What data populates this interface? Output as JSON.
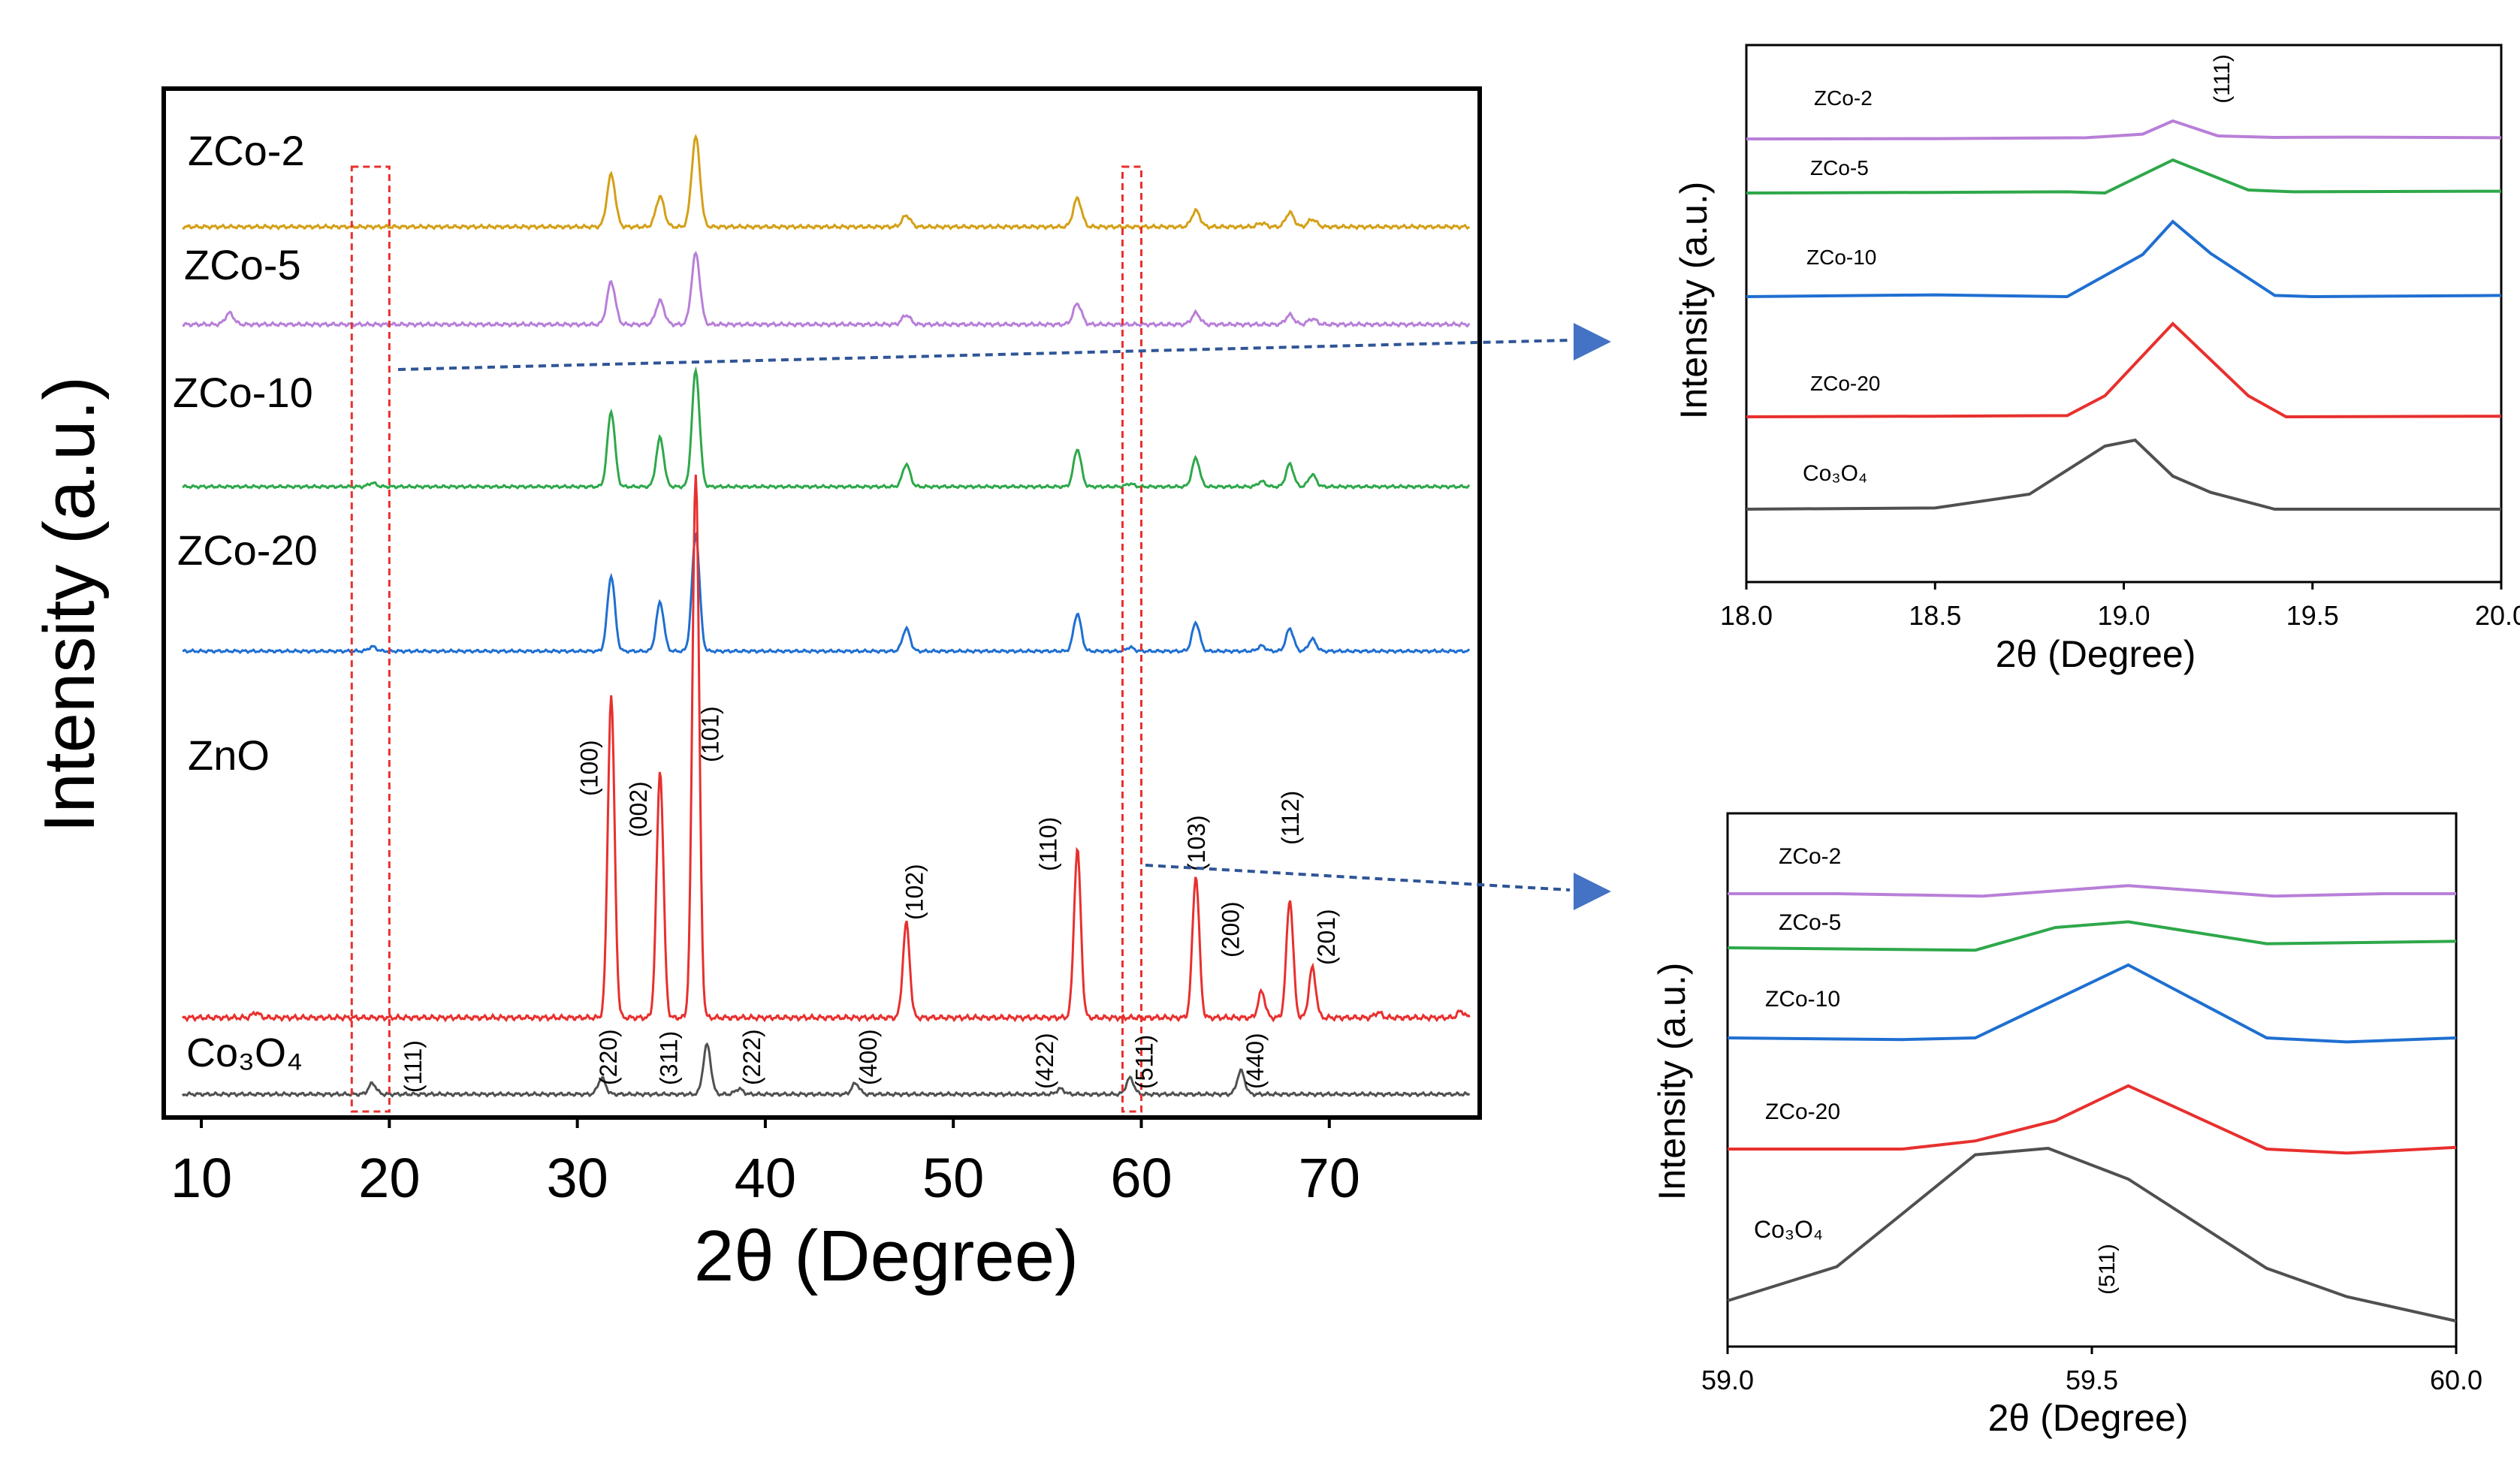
{
  "chart_data": [
    {
      "id": "main",
      "type": "line",
      "xlabel": "2θ (Degree)",
      "ylabel": "Intensity (a.u.)",
      "xlim": [
        8,
        78
      ],
      "xticks": [
        10,
        20,
        30,
        40,
        50,
        60,
        70
      ],
      "series": [
        {
          "name": "ZCo-2",
          "color": "#D4A017",
          "peaks": [
            [
              31.8,
              0.55
            ],
            [
              34.4,
              0.32
            ],
            [
              36.3,
              0.95
            ],
            [
              47.5,
              0.12
            ],
            [
              56.6,
              0.3
            ],
            [
              62.9,
              0.17
            ],
            [
              66.4,
              0.04
            ],
            [
              67.9,
              0.15
            ],
            [
              69.1,
              0.08
            ]
          ]
        },
        {
          "name": "ZCo-5",
          "color": "#B87FD8",
          "peaks": [
            [
              11.5,
              0.12
            ],
            [
              31.8,
              0.45
            ],
            [
              34.4,
              0.25
            ],
            [
              36.3,
              0.75
            ],
            [
              47.5,
              0.1
            ],
            [
              56.6,
              0.22
            ],
            [
              62.9,
              0.12
            ],
            [
              67.9,
              0.1
            ],
            [
              69.1,
              0.06
            ]
          ]
        },
        {
          "name": "ZCo-10",
          "color": "#2EA84A",
          "peaks": [
            [
              19.1,
              0.05
            ],
            [
              31.8,
              1.0
            ],
            [
              34.4,
              0.65
            ],
            [
              36.3,
              1.55
            ],
            [
              47.5,
              0.3
            ],
            [
              56.6,
              0.5
            ],
            [
              59.4,
              0.04
            ],
            [
              62.9,
              0.38
            ],
            [
              66.4,
              0.07
            ],
            [
              67.9,
              0.3
            ],
            [
              69.1,
              0.16
            ]
          ]
        },
        {
          "name": "ZCo-20",
          "color": "#1F6FD1",
          "peaks": [
            [
              19.1,
              0.06
            ],
            [
              31.8,
              1.0
            ],
            [
              34.4,
              0.65
            ],
            [
              36.3,
              1.55
            ],
            [
              47.5,
              0.3
            ],
            [
              56.6,
              0.5
            ],
            [
              59.4,
              0.05
            ],
            [
              62.9,
              0.38
            ],
            [
              66.4,
              0.07
            ],
            [
              67.9,
              0.3
            ],
            [
              69.1,
              0.16
            ]
          ]
        },
        {
          "name": "ZnO",
          "color": "#E8302E",
          "peaks": [
            [
              12.9,
              0.04
            ],
            [
              31.8,
              2.45
            ],
            [
              34.4,
              1.88
            ],
            [
              36.3,
              4.15
            ],
            [
              47.5,
              0.72
            ],
            [
              56.6,
              1.28
            ],
            [
              62.9,
              1.08
            ],
            [
              66.4,
              0.2
            ],
            [
              67.9,
              0.9
            ],
            [
              69.1,
              0.38
            ],
            [
              72.6,
              0.04
            ],
            [
              77.0,
              0.05
            ]
          ]
        },
        {
          "name": "Co3O4",
          "color": "#505050",
          "peaks": [
            [
              19.1,
              0.12
            ],
            [
              31.3,
              0.18
            ],
            [
              36.9,
              0.55
            ],
            [
              38.6,
              0.06
            ],
            [
              44.8,
              0.12
            ],
            [
              55.7,
              0.06
            ],
            [
              59.4,
              0.18
            ],
            [
              65.3,
              0.26
            ]
          ]
        }
      ],
      "curve_labels": [
        "ZCo-2",
        "ZCo-5",
        "ZCo-10",
        "ZCo-20",
        "ZnO",
        "Co₃O₄"
      ],
      "annotations": [
        {
          "text": "(100)",
          "x": 31.8
        },
        {
          "text": "(002)",
          "x": 34.4
        },
        {
          "text": "(101)",
          "x": 36.3
        },
        {
          "text": "(102)",
          "x": 47.5
        },
        {
          "text": "(110)",
          "x": 56.6
        },
        {
          "text": "(103)",
          "x": 62.9
        },
        {
          "text": "(112)",
          "x": 67.9
        },
        {
          "text": "(200)",
          "x": 66.4
        },
        {
          "text": "(201)",
          "x": 69.1
        },
        {
          "text": "(111)",
          "x": 19.1
        },
        {
          "text": "(220)",
          "x": 31.3
        },
        {
          "text": "(311)",
          "x": 36.9
        },
        {
          "text": "(222)",
          "x": 38.6
        },
        {
          "text": "(400)",
          "x": 44.8
        },
        {
          "text": "(422)",
          "x": 55.7
        },
        {
          "text": "(511)",
          "x": 59.4
        },
        {
          "text": "(440)",
          "x": 65.3
        }
      ],
      "highlight_ranges": [
        [
          18.0,
          20.0
        ],
        [
          59.0,
          60.0
        ]
      ]
    },
    {
      "id": "inset_111",
      "type": "line",
      "xlabel": "2θ (Degree)",
      "ylabel": "Intensity (a.u.)",
      "xlim": [
        18.0,
        20.0
      ],
      "xticks": [
        "18.0",
        "18.5",
        "19.0",
        "19.5",
        "20.0"
      ],
      "peak_label": "(111)",
      "curve_labels": [
        "ZCo-2",
        "ZCo-5",
        "ZCo-10",
        "ZCo-20",
        "Co₃O₄"
      ],
      "series": [
        {
          "name": "ZCo-2",
          "color": "#B87FD8",
          "x": [
            18.0,
            18.5,
            18.9,
            19.05,
            19.13,
            19.25,
            19.4,
            19.6,
            20.0
          ],
          "y": [
            0.0,
            0.005,
            0.02,
            0.08,
            0.3,
            0.05,
            0.025,
            0.03,
            0.02
          ]
        },
        {
          "name": "ZCo-5",
          "color": "#2EA84A",
          "x": [
            18.0,
            18.5,
            18.85,
            18.95,
            19.13,
            19.33,
            19.45,
            20.0
          ],
          "y": [
            0.0,
            0.01,
            0.02,
            0.0,
            0.55,
            0.05,
            0.02,
            0.03
          ]
        },
        {
          "name": "ZCo-10",
          "color": "#1F6FD1",
          "x": [
            18.0,
            18.5,
            18.85,
            19.05,
            19.13,
            19.23,
            19.4,
            19.5,
            20.0
          ],
          "y": [
            0.0,
            0.03,
            0.0,
            0.7,
            1.25,
            0.72,
            0.02,
            0.0,
            0.02
          ]
        },
        {
          "name": "ZCo-20",
          "color": "#E8302E",
          "x": [
            18.0,
            18.5,
            18.85,
            18.95,
            19.13,
            19.33,
            19.43,
            20.0
          ],
          "y": [
            0.0,
            0.01,
            0.02,
            0.35,
            1.55,
            0.35,
            0.0,
            0.01
          ]
        },
        {
          "name": "Co3O4",
          "color": "#505050",
          "x": [
            18.0,
            18.5,
            18.75,
            18.95,
            19.03,
            19.13,
            19.23,
            19.4,
            20.0
          ],
          "y": [
            0.0,
            0.02,
            0.25,
            1.05,
            1.15,
            0.55,
            0.28,
            0.0,
            0.0
          ]
        }
      ]
    },
    {
      "id": "inset_511",
      "type": "line",
      "xlabel": "2θ (Degree)",
      "ylabel": "Intensity (a.u.)",
      "xlim": [
        59.0,
        60.0
      ],
      "xticks": [
        "59.0",
        "59.5",
        "60.0"
      ],
      "peak_label": "(511)",
      "curve_labels": [
        "ZCo-2",
        "ZCo-5",
        "ZCo-10",
        "ZCo-20",
        "Co₃O₄"
      ],
      "series": [
        {
          "name": "ZCo-2",
          "color": "#B87FD8",
          "x": [
            59.0,
            59.15,
            59.35,
            59.55,
            59.75,
            59.9,
            60.0
          ],
          "y": [
            0.0,
            0.0,
            -0.03,
            0.1,
            -0.03,
            0.0,
            0.0
          ]
        },
        {
          "name": "ZCo-5",
          "color": "#2EA84A",
          "x": [
            59.0,
            59.34,
            59.45,
            59.55,
            59.74,
            60.0
          ],
          "y": [
            0.0,
            -0.03,
            0.25,
            0.32,
            0.05,
            0.08
          ]
        },
        {
          "name": "ZCo-10",
          "color": "#1F6FD1",
          "x": [
            59.0,
            59.24,
            59.34,
            59.55,
            59.74,
            59.85,
            60.0
          ],
          "y": [
            0.0,
            -0.02,
            0.0,
            0.9,
            0.0,
            -0.05,
            0.0
          ]
        },
        {
          "name": "ZCo-20",
          "color": "#E8302E",
          "x": [
            59.0,
            59.24,
            59.34,
            59.45,
            59.55,
            59.74,
            59.85,
            60.0
          ],
          "y": [
            0.0,
            0.0,
            0.1,
            0.35,
            0.78,
            0.0,
            -0.05,
            0.02
          ]
        },
        {
          "name": "Co3O4",
          "color": "#505050",
          "x": [
            59.0,
            59.15,
            59.34,
            59.44,
            59.55,
            59.74,
            59.85,
            60.0
          ],
          "y": [
            0.0,
            0.42,
            1.8,
            1.88,
            1.5,
            0.4,
            0.05,
            -0.25
          ]
        }
      ]
    }
  ]
}
